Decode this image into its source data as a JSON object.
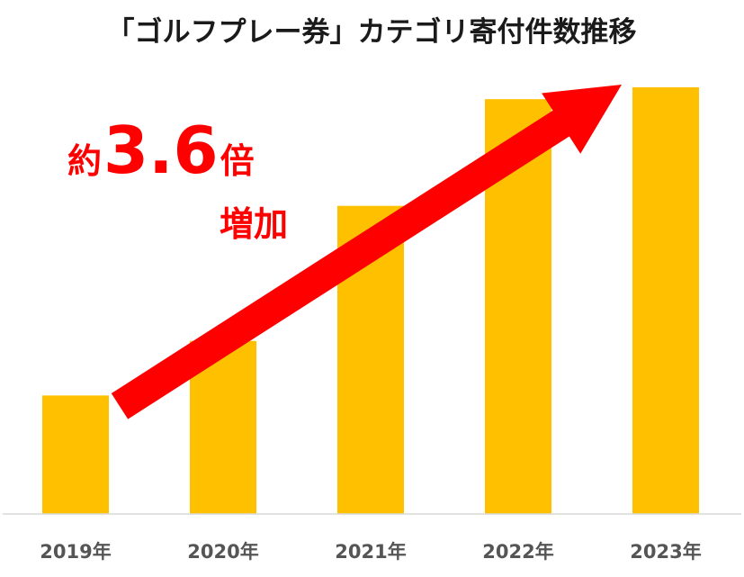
{
  "chart_data": {
    "type": "bar",
    "title": "「ゴルフプレー券」カテゴリ寄付件数推移",
    "categories": [
      "2019年",
      "2020年",
      "2021年",
      "2022年",
      "2023年"
    ],
    "values": [
      1.0,
      1.46,
      2.6,
      3.5,
      3.6
    ],
    "ylim": [
      0,
      3.6
    ],
    "grid": false,
    "axis_values_shown": false,
    "bar_color": "#FFC000",
    "annotation": {
      "prefix": "約",
      "value": "3.6",
      "suffix": "倍",
      "line2": "増加",
      "color": "#FF0000",
      "arrow": "rising from 2019年 to 2023年"
    }
  }
}
